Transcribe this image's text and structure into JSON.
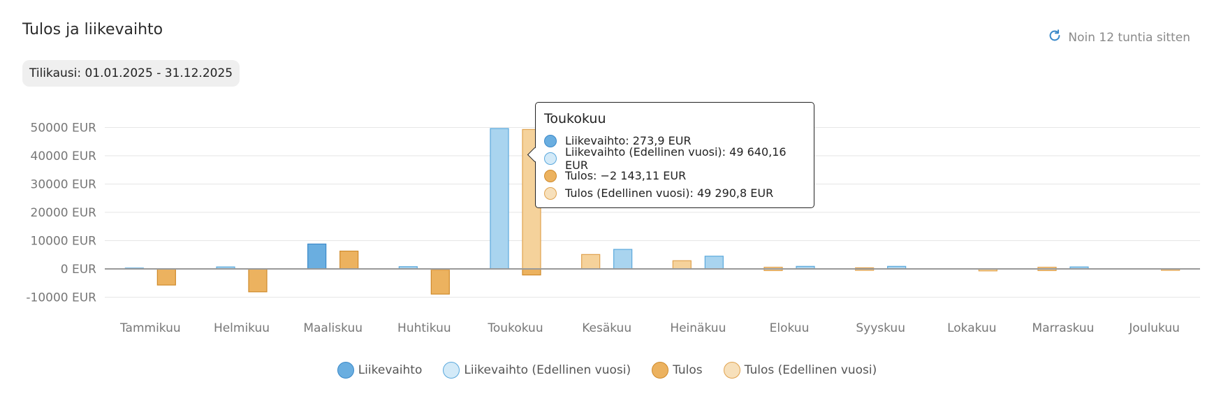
{
  "header": {
    "title": "Tulos ja liikevaihto",
    "refresh_label": "Noin 12 tuntia sitten",
    "period_label": "Tilikausi: 01.01.2025 - 31.12.2025"
  },
  "tooltip": {
    "title": "Toukokuu",
    "rows": [
      "Liikevaihto: 273,9 EUR",
      "Liikevaihto (Edellinen vuosi): 49 640,16 EUR",
      "Tulos: −2 143,11 EUR",
      "Tulos (Edellinen vuosi): 49 290,8 EUR"
    ]
  },
  "colors": {
    "liikevaihto_fill": "#6aaee0",
    "liikevaihto_stroke": "#3a89c9",
    "liikevaihto_prev_fill": "#a9d4ef",
    "liikevaihto_prev_stroke": "#5aa8dc",
    "tulos_fill": "#ecb25f",
    "tulos_stroke": "#cf8a2b",
    "tulos_prev_fill": "#f5d29b",
    "tulos_prev_stroke": "#e0a24e",
    "grid": "#e6e6e6",
    "zero_line": "#999999",
    "axis_text": "#777777"
  },
  "chart_data": {
    "type": "bar",
    "categories": [
      "Tammikuu",
      "Helmikuu",
      "Maaliskuu",
      "Huhtikuu",
      "Toukokuu",
      "Kesäkuu",
      "Heinäkuu",
      "Elokuu",
      "Syyskuu",
      "Lokakuu",
      "Marraskuu",
      "Joulukuu"
    ],
    "ylim": [
      -10000,
      50000
    ],
    "y_ticks": [
      -10000,
      0,
      10000,
      20000,
      30000,
      40000,
      50000
    ],
    "y_tick_labels": [
      "-10000 EUR",
      "0 EUR",
      "10000 EUR",
      "20000 EUR",
      "30000 EUR",
      "40000 EUR",
      "50000 EUR"
    ],
    "grid": true,
    "legend_position": "bottom",
    "series": [
      {
        "name": "Liikevaihto",
        "values": [
          0,
          0,
          8800,
          0,
          273.9,
          0,
          0,
          0,
          0,
          0,
          0,
          0
        ]
      },
      {
        "name": "Liikevaihto (Edellinen vuosi)",
        "values": [
          300,
          700,
          0,
          800,
          49640.16,
          6900,
          4500,
          900,
          900,
          0,
          700,
          0
        ]
      },
      {
        "name": "Tulos",
        "values": [
          -5700,
          -8100,
          6300,
          -8900,
          -2143.11,
          0,
          0,
          0,
          0,
          0,
          0,
          0
        ]
      },
      {
        "name": "Tulos (Edellinen vuosi)",
        "values": [
          0,
          0,
          0,
          -400,
          49290.8,
          5100,
          2900,
          600,
          400,
          -700,
          600,
          -500
        ]
      }
    ],
    "series_prev_offset": [
      0,
      0,
      0,
      0,
      0,
      0,
      0,
      -600,
      -500,
      0,
      -600,
      0
    ]
  },
  "legend": [
    {
      "label": "Liikevaihto"
    },
    {
      "label": "Liikevaihto (Edellinen vuosi)"
    },
    {
      "label": "Tulos"
    },
    {
      "label": "Tulos (Edellinen vuosi)"
    }
  ]
}
